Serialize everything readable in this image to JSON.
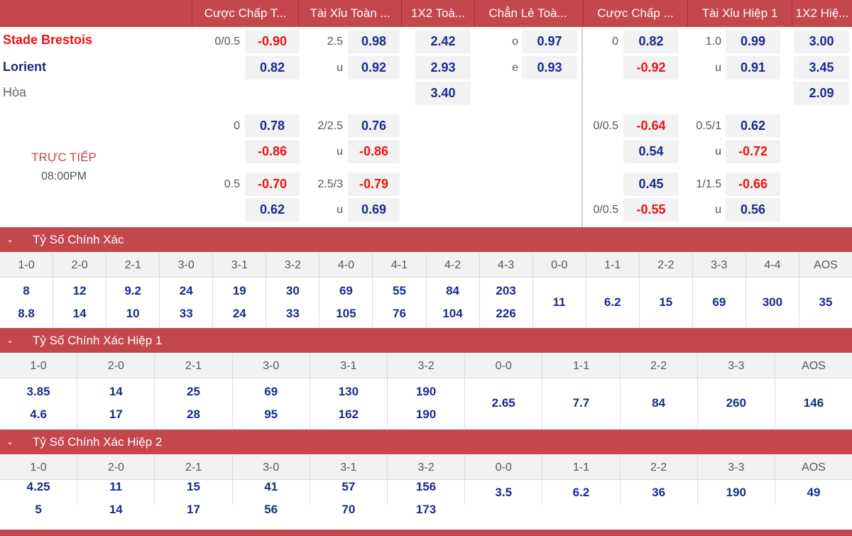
{
  "headers": [
    "Cược Chấp T...",
    "Tài Xỉu Toàn ...",
    "1X2 Toà...",
    "Chẳn Lẻ Toà...",
    "Cược Chấp ...",
    "Tài Xỉu Hiệp 1",
    "1X2 Hiệ..."
  ],
  "teams": {
    "home": "Stade Brestois",
    "away": "Lorient",
    "draw": "Hòa"
  },
  "live": {
    "status": "TRỰC TIẾP",
    "time": "08:00PM"
  },
  "colors": {
    "header": "#c4474c",
    "home": "#ee1111",
    "away": "#1a2a8c"
  },
  "rows": [
    {
      "ah": [
        "0/0.5",
        "-0.90"
      ],
      "ou": [
        "2.5",
        "0.98"
      ],
      "x12": "2.42",
      "oe": [
        "o",
        "0.97"
      ],
      "ah1": [
        "0",
        "0.82"
      ],
      "ou1": [
        "1.0",
        "0.99"
      ],
      "x12h1": "3.00"
    },
    {
      "ah": [
        "",
        "0.82"
      ],
      "ou": [
        "u",
        "0.92"
      ],
      "x12": "2.93",
      "oe": [
        "e",
        "0.93"
      ],
      "ah1": [
        "",
        "-0.92"
      ],
      "ou1": [
        "u",
        "0.91"
      ],
      "x12h1": "3.45"
    },
    {
      "x12": "3.40",
      "x12h1": "2.09"
    },
    {
      "ah": [
        "0",
        "0.78"
      ],
      "ou": [
        "2/2.5",
        "0.76"
      ],
      "ah1": [
        "0/0.5",
        "-0.64"
      ],
      "ou1": [
        "0.5/1",
        "0.62"
      ]
    },
    {
      "ah": [
        "",
        "-0.86"
      ],
      "ou": [
        "u",
        "-0.86"
      ],
      "ah1": [
        "",
        "0.54"
      ],
      "ou1": [
        "u",
        "-0.72"
      ]
    },
    {
      "ah": [
        "0.5",
        "-0.70"
      ],
      "ou": [
        "2.5/3",
        "-0.79"
      ],
      "ah1": [
        "",
        "0.45"
      ],
      "ou1": [
        "1/1.5",
        "-0.66"
      ]
    },
    {
      "ah": [
        "",
        "0.62"
      ],
      "ou": [
        "u",
        "0.69"
      ],
      "ah1": [
        "0/0.5",
        "-0.55"
      ],
      "ou1": [
        "u",
        "0.56"
      ]
    }
  ],
  "sections": [
    {
      "title": "Tỷ Số Chính Xác",
      "cols": [
        {
          "label": "1-0",
          "vals": [
            "8",
            "8.8"
          ]
        },
        {
          "label": "2-0",
          "vals": [
            "12",
            "14"
          ]
        },
        {
          "label": "2-1",
          "vals": [
            "9.2",
            "10"
          ]
        },
        {
          "label": "3-0",
          "vals": [
            "24",
            "33"
          ]
        },
        {
          "label": "3-1",
          "vals": [
            "19",
            "24"
          ]
        },
        {
          "label": "3-2",
          "vals": [
            "30",
            "33"
          ]
        },
        {
          "label": "4-0",
          "vals": [
            "69",
            "105"
          ]
        },
        {
          "label": "4-1",
          "vals": [
            "55",
            "76"
          ]
        },
        {
          "label": "4-2",
          "vals": [
            "84",
            "104"
          ]
        },
        {
          "label": "4-3",
          "vals": [
            "203",
            "226"
          ]
        },
        {
          "label": "0-0",
          "vals": [
            "11"
          ]
        },
        {
          "label": "1-1",
          "vals": [
            "6.2"
          ]
        },
        {
          "label": "2-2",
          "vals": [
            "15"
          ]
        },
        {
          "label": "3-3",
          "vals": [
            "69"
          ]
        },
        {
          "label": "4-4",
          "vals": [
            "300"
          ]
        },
        {
          "label": "AOS",
          "vals": [
            "35"
          ]
        }
      ]
    },
    {
      "title": "Tỷ Số Chính Xác Hiệp 1",
      "cols": [
        {
          "label": "1-0",
          "vals": [
            "3.85",
            "4.6"
          ]
        },
        {
          "label": "2-0",
          "vals": [
            "14",
            "17"
          ]
        },
        {
          "label": "2-1",
          "vals": [
            "25",
            "28"
          ]
        },
        {
          "label": "3-0",
          "vals": [
            "69",
            "95"
          ]
        },
        {
          "label": "3-1",
          "vals": [
            "130",
            "162"
          ]
        },
        {
          "label": "3-2",
          "vals": [
            "190",
            "190"
          ]
        },
        {
          "label": "0-0",
          "vals": [
            "2.65"
          ]
        },
        {
          "label": "1-1",
          "vals": [
            "7.7"
          ]
        },
        {
          "label": "2-2",
          "vals": [
            "84"
          ]
        },
        {
          "label": "3-3",
          "vals": [
            "260"
          ]
        },
        {
          "label": "AOS",
          "vals": [
            "146"
          ]
        }
      ]
    },
    {
      "title": "Tỷ Số Chính Xác Hiệp 2",
      "cols": [
        {
          "label": "1-0",
          "vals": [
            "4.25",
            "5"
          ]
        },
        {
          "label": "2-0",
          "vals": [
            "11",
            "14"
          ]
        },
        {
          "label": "2-1",
          "vals": [
            "15",
            "17"
          ]
        },
        {
          "label": "3-0",
          "vals": [
            "41",
            "56"
          ]
        },
        {
          "label": "3-1",
          "vals": [
            "57",
            "70"
          ]
        },
        {
          "label": "3-2",
          "vals": [
            "156",
            "173"
          ]
        },
        {
          "label": "0-0",
          "vals": [
            "3.5"
          ]
        },
        {
          "label": "1-1",
          "vals": [
            "6.2"
          ]
        },
        {
          "label": "2-2",
          "vals": [
            "36"
          ]
        },
        {
          "label": "3-3",
          "vals": [
            "190"
          ]
        },
        {
          "label": "AOS",
          "vals": [
            "49"
          ]
        }
      ]
    }
  ]
}
